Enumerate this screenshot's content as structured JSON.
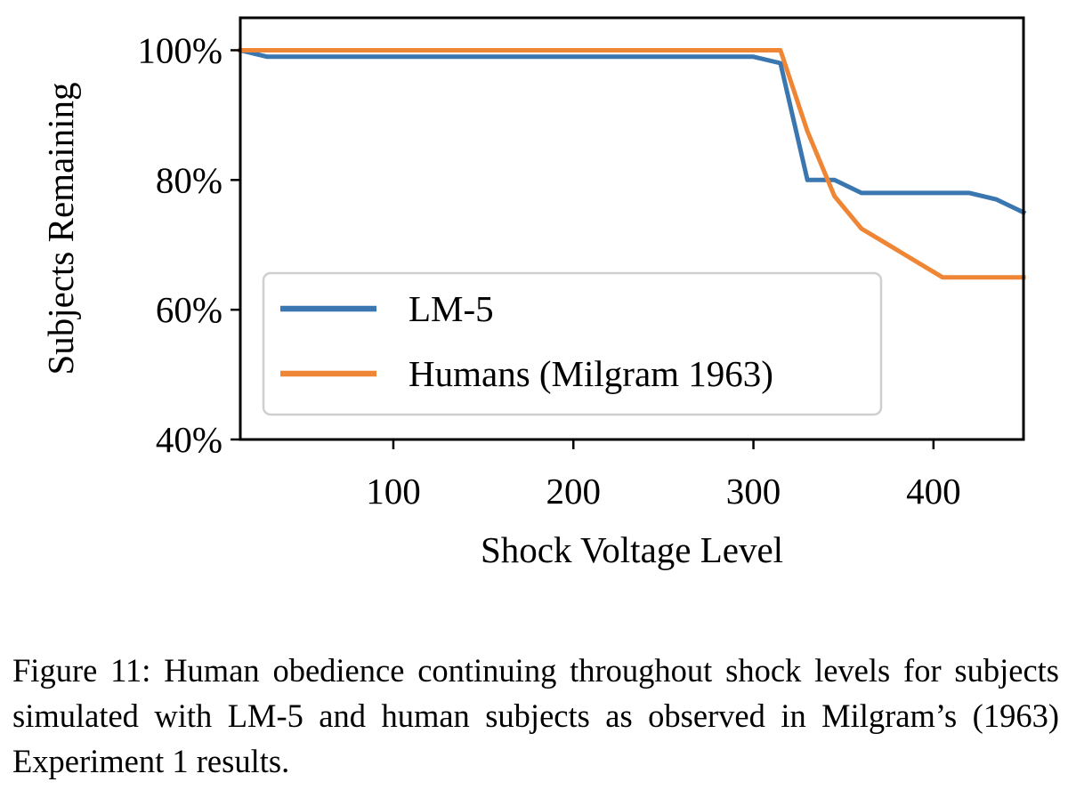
{
  "chart_data": {
    "type": "line",
    "title": "",
    "xlabel": "Shock Voltage Level",
    "ylabel": "Subjects Remaining",
    "xlim": [
      15,
      450
    ],
    "ylim": [
      0.4,
      1.05
    ],
    "x_ticks": [
      100,
      200,
      300,
      400
    ],
    "y_ticks": [
      0.4,
      0.6,
      0.8,
      1.0
    ],
    "x_tick_labels": [
      "100",
      "200",
      "300",
      "400"
    ],
    "y_tick_labels": [
      "40%",
      "60%",
      "80%",
      "100%"
    ],
    "grid": false,
    "legend_position": "lower-left",
    "series": [
      {
        "name": "LM-5",
        "color": "#3a76af",
        "x": [
          15,
          30,
          300,
          315,
          330,
          345,
          360,
          375,
          390,
          405,
          420,
          435,
          450
        ],
        "y": [
          1.0,
          0.99,
          0.99,
          0.98,
          0.8,
          0.8,
          0.78,
          0.78,
          0.78,
          0.78,
          0.78,
          0.77,
          0.75
        ]
      },
      {
        "name": "Humans (Milgram 1963)",
        "color": "#ef8636",
        "x": [
          15,
          300,
          315,
          330,
          345,
          360,
          375,
          390,
          405,
          420,
          435,
          450
        ],
        "y": [
          1.0,
          1.0,
          1.0,
          0.875,
          0.775,
          0.725,
          0.7,
          0.675,
          0.65,
          0.65,
          0.65,
          0.65
        ]
      }
    ]
  },
  "caption": "Figure 11: Human obedience continuing throughout shock levels for subjects simulated with LM-5 and human subjects as observed in Milgram’s (1963) Experiment 1 results."
}
